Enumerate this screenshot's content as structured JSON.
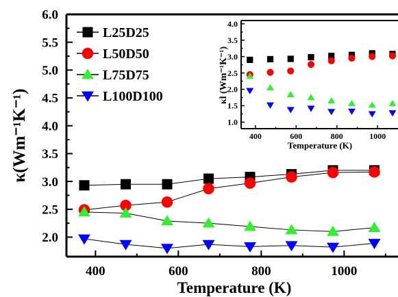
{
  "chart_data": [
    {
      "type": "line",
      "xlabel": "Temperature (K)",
      "ylabel": "κ(Wm⁻¹K⁻¹)",
      "xlim": [
        330,
        1130
      ],
      "ylim": [
        1.65,
        6.0
      ],
      "xticks": [
        400,
        600,
        800,
        1000
      ],
      "xtick_labels": [
        "400",
        "600",
        "800",
        "1000"
      ],
      "yticks": [
        2.0,
        2.5,
        3.0,
        3.5,
        4.0,
        4.5,
        5.0,
        5.5,
        6.0
      ],
      "ytick_labels": [
        "2.0",
        "2.5",
        "3.0",
        "3.5",
        "4.0",
        "4.5",
        "5.0",
        "5.5",
        "6.0"
      ],
      "legend_position": "top-left",
      "x": [
        373,
        473,
        573,
        673,
        773,
        873,
        973,
        1073
      ],
      "series": [
        {
          "name": "L25D25",
          "marker": "square",
          "color": "#000000",
          "values": [
            2.93,
            2.95,
            2.95,
            3.05,
            3.08,
            3.13,
            3.2,
            3.2
          ]
        },
        {
          "name": "L50D50",
          "marker": "circle",
          "color": "#ff0000",
          "values": [
            2.49,
            2.57,
            2.63,
            2.87,
            2.97,
            3.08,
            3.16,
            3.17
          ]
        },
        {
          "name": "L75D75",
          "marker": "triangle-up",
          "color": "#33ee33",
          "values": [
            2.45,
            2.43,
            2.29,
            2.25,
            2.19,
            2.13,
            2.1,
            2.17
          ]
        },
        {
          "name": "L100D100",
          "marker": "triangle-down",
          "color": "#0000ff",
          "values": [
            1.97,
            1.87,
            1.8,
            1.87,
            1.83,
            1.85,
            1.82,
            1.89
          ]
        }
      ]
    },
    {
      "type": "scatter",
      "xlabel": "Temperature (K)",
      "ylabel": "κl (Wm⁻¹K⁻¹)",
      "xlim": [
        330,
        1100
      ],
      "ylim": [
        0.8,
        4.1
      ],
      "xticks": [
        400,
        600,
        800,
        1000
      ],
      "xtick_labels": [
        "400",
        "600",
        "800",
        "1000"
      ],
      "yticks": [
        1.0,
        1.5,
        2.0,
        2.5,
        3.0,
        3.5,
        4.0
      ],
      "ytick_labels": [
        "1.0",
        "1.5",
        "2.0",
        "2.5",
        "3.0",
        "3.5",
        "4.0"
      ],
      "x": [
        373,
        473,
        573,
        673,
        773,
        873,
        973,
        1073
      ],
      "series": [
        {
          "marker": "square",
          "color": "#000000",
          "values": [
            2.9,
            2.92,
            2.93,
            2.98,
            3.02,
            3.05,
            3.1,
            3.08
          ]
        },
        {
          "marker": "circle",
          "color": "#ff0000",
          "values": [
            2.45,
            2.52,
            2.56,
            2.76,
            2.87,
            2.95,
            3.0,
            3.02
          ]
        },
        {
          "marker": "triangle-up",
          "color": "#33ee33",
          "values": [
            2.4,
            2.05,
            1.84,
            1.75,
            1.65,
            1.57,
            1.52,
            1.57
          ]
        },
        {
          "marker": "triangle-down",
          "color": "#0000ff",
          "values": [
            1.96,
            1.52,
            1.38,
            1.42,
            1.32,
            1.33,
            1.25,
            1.28
          ]
        }
      ]
    }
  ]
}
